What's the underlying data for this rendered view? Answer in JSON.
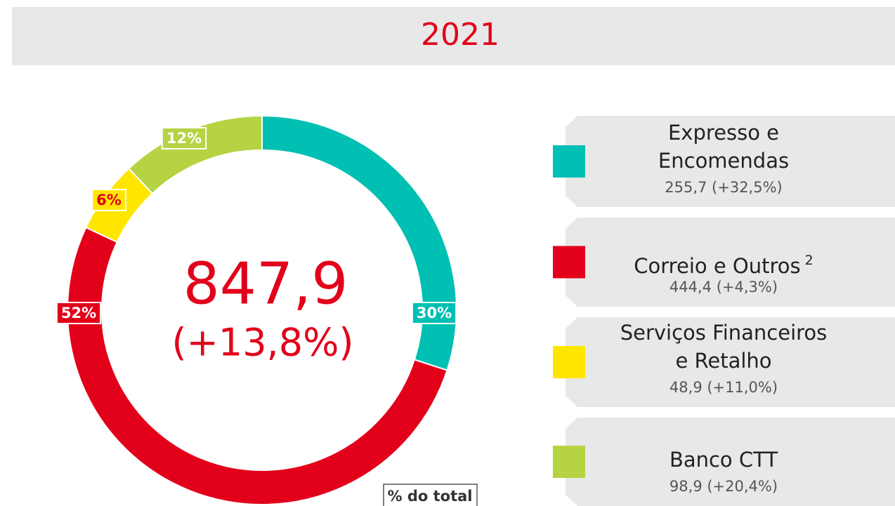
{
  "chart_data": {
    "type": "pie",
    "title": "2021",
    "center_value": "847,9",
    "center_change": "(+13,8%)",
    "note": "% do total",
    "series": [
      {
        "name": "Expresso e\nEncomendas",
        "color": "#00bfb3",
        "label_text_color": "#ffffff",
        "detail": "255,7 (+32,5%)"
      },
      {
        "name": "Correio e Outros",
        "footnote": "2",
        "color": "#e2001a",
        "label_text_color": "#ffffff",
        "detail": "444,4 (+4,3%)"
      },
      {
        "name": "Serviços Financeiros\ne Retalho",
        "color": "#ffe600",
        "label_text_color": "#e2001a",
        "detail": "48,9 (+11,0%)"
      },
      {
        "name": "Banco CTT",
        "color": "#b5d343",
        "label_text_color": "#ffffff",
        "detail": "98,9 (+20,4%)"
      }
    ],
    "values": [
      30,
      52,
      6,
      12
    ],
    "value_labels": [
      "30%",
      "52%",
      "6%",
      "12%"
    ]
  }
}
